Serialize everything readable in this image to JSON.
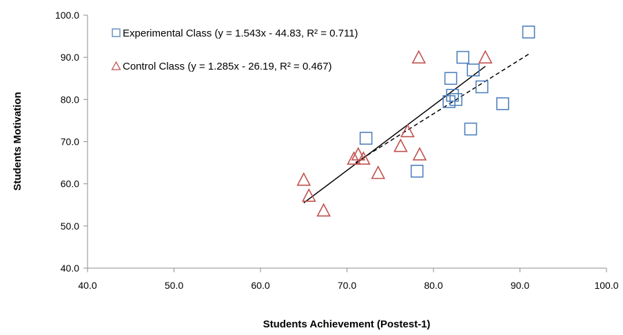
{
  "chart_data": {
    "type": "scatter",
    "title": "",
    "xlabel": "Students Achievement (Postest-1)",
    "ylabel": "Students Motivation",
    "xlim": [
      40,
      100
    ],
    "ylim": [
      40,
      100
    ],
    "x_ticks": [
      "40.0",
      "50.0",
      "60.0",
      "70.0",
      "80.0",
      "90.0",
      "100.0"
    ],
    "y_ticks": [
      "40.0",
      "50.0",
      "60.0",
      "70.0",
      "80.0",
      "90.0",
      "100.0"
    ],
    "grid": false,
    "legend_position": "top-left",
    "series": [
      {
        "name": "Experimental Class (y = 1.543x - 44.83, R² = 0.711)",
        "marker": "square",
        "color": "#4f81bd",
        "trendline": {
          "slope": 1.543,
          "intercept": -44.83,
          "x_range": [
            65,
            86
          ],
          "style": "solid"
        },
        "points": [
          {
            "x": 91.0,
            "y": 96.0
          },
          {
            "x": 83.4,
            "y": 90.0
          },
          {
            "x": 84.6,
            "y": 87.0
          },
          {
            "x": 82.0,
            "y": 85.0
          },
          {
            "x": 85.6,
            "y": 83.0
          },
          {
            "x": 82.2,
            "y": 81.0
          },
          {
            "x": 82.6,
            "y": 80.0
          },
          {
            "x": 81.8,
            "y": 79.5
          },
          {
            "x": 88.0,
            "y": 79.0
          },
          {
            "x": 84.3,
            "y": 73.0
          },
          {
            "x": 72.2,
            "y": 70.8
          },
          {
            "x": 78.1,
            "y": 63.0
          }
        ]
      },
      {
        "name": "Control Class (y = 1.285x - 26.19, R² = 0.467)",
        "marker": "triangle",
        "color": "#c0504d",
        "trendline": {
          "slope": 1.285,
          "intercept": -26.19,
          "x_range": [
            71,
            91
          ],
          "style": "dashed"
        },
        "points": [
          {
            "x": 78.3,
            "y": 90.0
          },
          {
            "x": 86.0,
            "y": 90.0
          },
          {
            "x": 77.0,
            "y": 72.5
          },
          {
            "x": 76.2,
            "y": 69.0
          },
          {
            "x": 78.4,
            "y": 67.0
          },
          {
            "x": 71.3,
            "y": 67.0
          },
          {
            "x": 70.8,
            "y": 66.0
          },
          {
            "x": 71.9,
            "y": 66.0
          },
          {
            "x": 73.6,
            "y": 62.6
          },
          {
            "x": 65.0,
            "y": 61.0
          },
          {
            "x": 65.6,
            "y": 57.2
          },
          {
            "x": 67.3,
            "y": 53.7
          }
        ]
      }
    ]
  }
}
